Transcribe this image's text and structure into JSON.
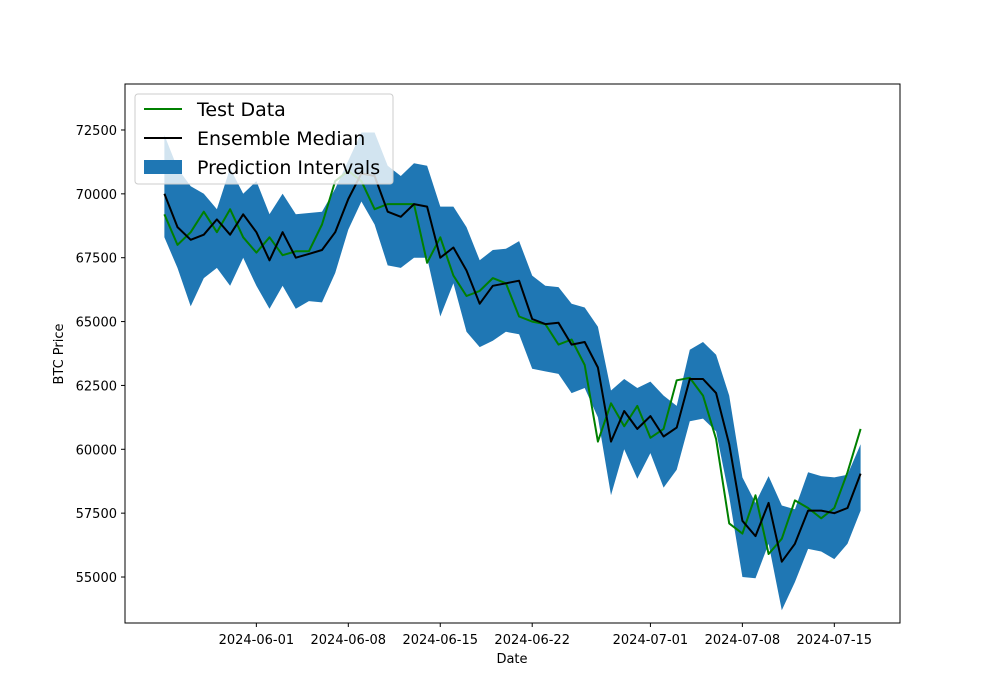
{
  "chart_data": {
    "type": "line",
    "xlabel": "Date",
    "ylabel": "BTC Price",
    "x_ticks": [
      "2024-06-01",
      "2024-06-08",
      "2024-06-15",
      "2024-06-22",
      "2024-07-01",
      "2024-07-08",
      "2024-07-15"
    ],
    "y_ticks": [
      55000,
      57500,
      60000,
      62500,
      65000,
      67500,
      70000,
      72500
    ],
    "xlim": [
      "2024-05-22",
      "2024-07-20"
    ],
    "ylim": [
      53200,
      74300
    ],
    "legend_position": "top-left",
    "grid": false,
    "colors": {
      "test_data": "#008000",
      "median": "#000000",
      "interval": "#1f77b4",
      "interval_light": "#c6dcec"
    },
    "x": [
      "2024-05-25",
      "2024-05-26",
      "2024-05-27",
      "2024-05-28",
      "2024-05-29",
      "2024-05-30",
      "2024-05-31",
      "2024-06-01",
      "2024-06-02",
      "2024-06-03",
      "2024-06-04",
      "2024-06-05",
      "2024-06-06",
      "2024-06-07",
      "2024-06-08",
      "2024-06-09",
      "2024-06-10",
      "2024-06-11",
      "2024-06-12",
      "2024-06-13",
      "2024-06-14",
      "2024-06-15",
      "2024-06-16",
      "2024-06-17",
      "2024-06-18",
      "2024-06-19",
      "2024-06-20",
      "2024-06-21",
      "2024-06-22",
      "2024-06-23",
      "2024-06-24",
      "2024-06-25",
      "2024-06-26",
      "2024-06-27",
      "2024-06-28",
      "2024-06-29",
      "2024-06-30",
      "2024-07-01",
      "2024-07-02",
      "2024-07-03",
      "2024-07-04",
      "2024-07-05",
      "2024-07-06",
      "2024-07-07",
      "2024-07-08",
      "2024-07-09",
      "2024-07-10",
      "2024-07-11",
      "2024-07-12",
      "2024-07-13",
      "2024-07-14",
      "2024-07-15",
      "2024-07-16",
      "2024-07-17"
    ],
    "series": [
      {
        "name": "Test Data",
        "role": "line",
        "values": [
          69200,
          68000,
          68500,
          69300,
          68500,
          69400,
          68300,
          67700,
          68300,
          67600,
          67750,
          67750,
          68800,
          70500,
          70900,
          70500,
          69400,
          69600,
          69600,
          69600,
          67300,
          68300,
          66800,
          66000,
          66200,
          66700,
          66500,
          65200,
          65000,
          64900,
          64100,
          64300,
          63300,
          60300,
          61800,
          60900,
          61700,
          60450,
          60800,
          62700,
          62800,
          62100,
          60400,
          57100,
          56700,
          58200,
          55900,
          56500,
          58000,
          57700,
          57300,
          57700,
          59100,
          60800
        ]
      },
      {
        "name": "Ensemble Median",
        "role": "line",
        "values": [
          70000,
          68700,
          68200,
          68400,
          69000,
          68400,
          69200,
          68500,
          67400,
          68500,
          67500,
          67650,
          67800,
          68500,
          69800,
          70800,
          70700,
          69300,
          69100,
          69600,
          69500,
          67500,
          67900,
          67000,
          65700,
          66400,
          66500,
          66600,
          65100,
          64900,
          64950,
          64100,
          64200,
          63200,
          60300,
          61500,
          60800,
          61300,
          60500,
          60850,
          62750,
          62750,
          62200,
          60200,
          57200,
          56600,
          57900,
          55600,
          56300,
          57600,
          57600,
          57500,
          57700,
          59050
        ]
      },
      {
        "name": "Prediction Intervals",
        "role": "band",
        "upper": [
          72300,
          71000,
          70300,
          70000,
          69400,
          71000,
          70000,
          70500,
          69200,
          70000,
          69200,
          69250,
          69300,
          70200,
          71300,
          72400,
          72400,
          71100,
          70700,
          71200,
          71100,
          69500,
          69500,
          68700,
          67400,
          67800,
          67850,
          68150,
          66800,
          66400,
          66350,
          65700,
          65550,
          64800,
          62300,
          62750,
          62400,
          62650,
          62100,
          61700,
          63900,
          64200,
          63700,
          62100,
          58900,
          57900,
          58950,
          57800,
          57650,
          59100,
          58950,
          58900,
          59000,
          60200
        ],
        "lower": [
          68300,
          67100,
          65600,
          66700,
          67100,
          66400,
          67500,
          66400,
          65500,
          66400,
          65500,
          65800,
          65750,
          66900,
          68600,
          69700,
          68800,
          67200,
          67100,
          67500,
          67500,
          65200,
          66500,
          64600,
          64000,
          64250,
          64600,
          64500,
          63150,
          63050,
          62950,
          62200,
          62400,
          61250,
          58200,
          60000,
          58850,
          59850,
          58500,
          59200,
          61100,
          61200,
          60700,
          58150,
          55000,
          54950,
          56300,
          53700,
          54800,
          56100,
          56000,
          55700,
          56300,
          57600
        ],
        "light_until_index": 10
      }
    ]
  }
}
